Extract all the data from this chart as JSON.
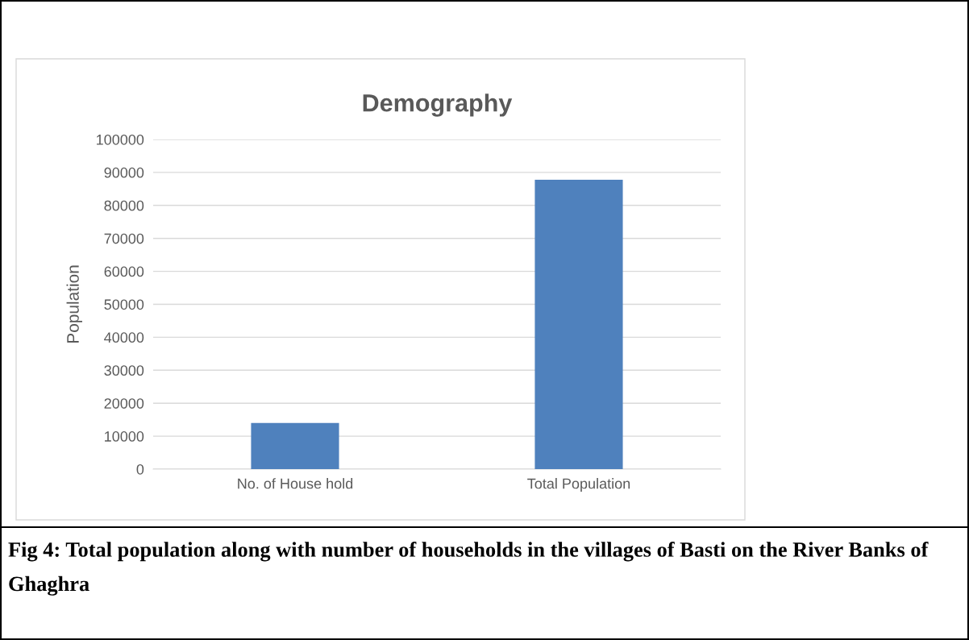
{
  "chart_data": {
    "type": "bar",
    "title": "Demography",
    "ylabel": "Population",
    "categories": [
      "No. of House hold",
      "Total Population"
    ],
    "values": [
      14000,
      87800
    ],
    "color": "#4f81bd",
    "ylim": [
      0,
      100000
    ],
    "yticks": [
      0,
      10000,
      20000,
      30000,
      40000,
      50000,
      60000,
      70000,
      80000,
      90000,
      100000
    ],
    "grid": "y",
    "legend": false,
    "annotations": [
      "Fig 4: Total population along with number of households in the villages of Basti on the River Banks of Ghaghra"
    ]
  }
}
